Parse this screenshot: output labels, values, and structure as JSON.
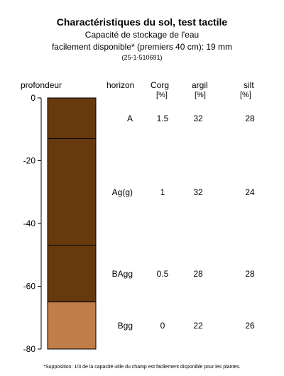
{
  "header": {
    "title": "Charactéristiques du sol, test tactile",
    "subtitle_line1": "Capacité de stockage de l'eau",
    "subtitle_line2": "facilement disponible* (premiers 40 cm): 19 mm",
    "code": "(25-1-510691)"
  },
  "columns": {
    "depth": "profondeur",
    "horizon": "horizon",
    "corg": "Corg",
    "corg_unit": "[%]",
    "argil": "argil",
    "argil_unit": "[%]",
    "silt": "silt",
    "silt_unit": "[%]"
  },
  "footnote": "*Supposition: 1/3 de la capacité utile du champ est facilement disponible pour les plantes.",
  "chart_data": {
    "type": "table",
    "ylabel": "profondeur",
    "ylim": [
      -80,
      0
    ],
    "yticks": [
      0,
      -20,
      -40,
      -60,
      -80
    ],
    "layers": [
      {
        "horizon": "A",
        "top": 0,
        "bottom": -13,
        "corg": "1.5",
        "argil": "32",
        "silt": "28",
        "color": "#673A0E"
      },
      {
        "horizon": "Ag(g)",
        "top": -13,
        "bottom": -47,
        "corg": "1",
        "argil": "32",
        "silt": "24",
        "color": "#673A0E"
      },
      {
        "horizon": "BAgg",
        "top": -47,
        "bottom": -65,
        "corg": "0.5",
        "argil": "28",
        "silt": "28",
        "color": "#673A0E"
      },
      {
        "horizon": "Bgg",
        "top": -65,
        "bottom": -80,
        "corg": "0",
        "argil": "22",
        "silt": "26",
        "color": "#BF7D49"
      }
    ]
  }
}
